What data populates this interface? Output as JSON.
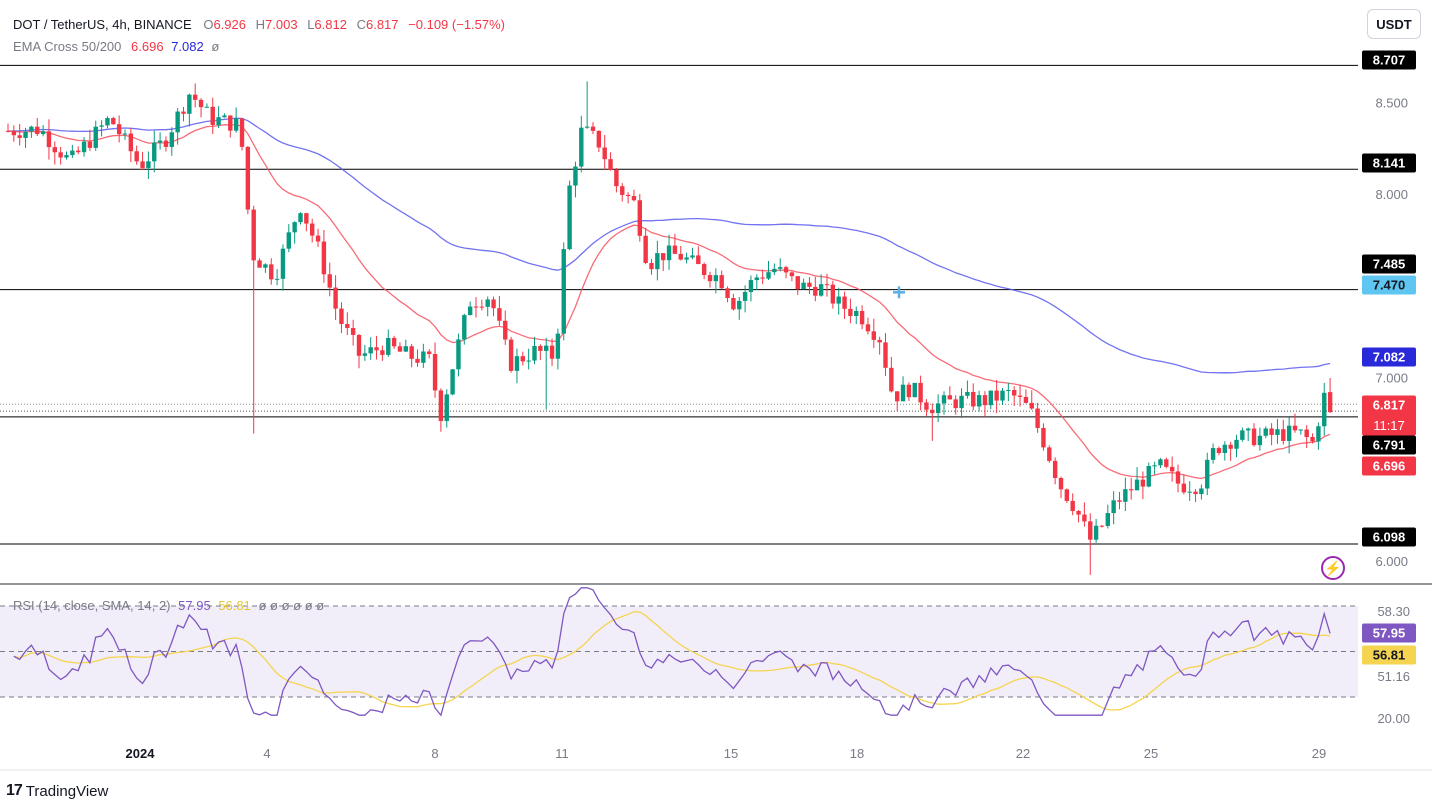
{
  "header": {
    "symbol": "DOT / TetherUS, 4h, BINANCE",
    "open_label": "O",
    "open": "6.926",
    "high_label": "H",
    "high": "7.003",
    "low_label": "L",
    "low": "6.812",
    "close_label": "C",
    "close": "6.817",
    "change": "−0.109 (−1.57%)",
    "ema_label": "EMA Cross 50/200",
    "ema50": "6.696",
    "ema200": "7.082",
    "ema_null": "ø"
  },
  "rsi_header": {
    "label": "RSI (14, close, SMA, 14, 2)",
    "rsi": "57.95",
    "sma": "56.81",
    "nulls": "ø ø ø ø ø ø"
  },
  "currency_button": "USDT",
  "brand": "TradingView",
  "colors": {
    "up": "#089981",
    "down": "#f23645",
    "ema50": "#f7525f",
    "ema200": "#5b5bf0",
    "rsi": "#7e57c2",
    "rsi_sma": "#f5d451",
    "level": "#000000"
  },
  "chart_data": [
    {
      "type": "candlestick",
      "x_ticks": [
        "2024",
        "4",
        "8",
        "11",
        "15",
        "18",
        "22",
        "25",
        "29"
      ],
      "y_ticks": [
        "8.500",
        "8.000",
        "7.000",
        "6.000"
      ],
      "ylim": [
        5.88,
        8.78
      ],
      "horizontal_levels": [
        8.707,
        8.141,
        7.485,
        6.791,
        6.098
      ],
      "price_tags": [
        {
          "value": 8.707,
          "text": "8.707",
          "style": "level"
        },
        {
          "value": 8.141,
          "text": "8.141",
          "style": "level"
        },
        {
          "value": 7.485,
          "text": "7.485",
          "style": "level"
        },
        {
          "value": 7.47,
          "text": "7.470",
          "style": "cross"
        },
        {
          "value": 7.082,
          "text": "7.082",
          "style": "ema200"
        },
        {
          "value": 6.817,
          "text": "6.817",
          "style": "last",
          "countdown": "11:17"
        },
        {
          "value": 6.791,
          "text": "6.791",
          "style": "level"
        },
        {
          "value": 6.696,
          "text": "6.696",
          "style": "ema50"
        },
        {
          "value": 6.098,
          "text": "6.098",
          "style": "level"
        }
      ],
      "ema50_value": 6.696,
      "ema200_value": 7.082,
      "last_close": 6.817
    },
    {
      "type": "line",
      "name": "RSI",
      "y_ticks": [
        "58.30",
        "51.16",
        "20.00"
      ],
      "rsi_last": 57.95,
      "rsi_sma_last": 56.81,
      "bands": [
        70,
        50,
        30
      ]
    }
  ]
}
